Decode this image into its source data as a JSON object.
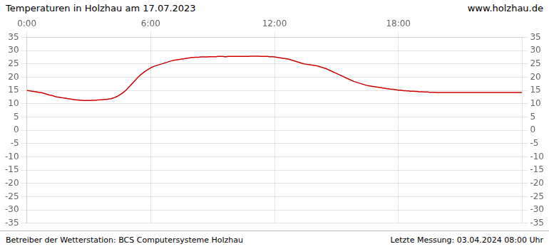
{
  "chart_data": {
    "type": "line",
    "title": "Temperaturen in Holzhau am 17.07.2023",
    "annotations": [
      "www.holzhau.de",
      "Betreiber der Wetterstation: BCS Computersysteme Holzhau",
      "Letzte Messung: 03.04.2024 08:00 Uhr"
    ],
    "x": [
      0,
      1,
      2,
      3,
      4,
      5,
      6,
      7,
      8,
      9,
      10,
      11,
      12,
      13,
      14,
      15,
      16,
      17,
      18,
      19,
      20,
      21,
      22,
      23,
      24,
      25,
      26,
      27,
      28,
      29,
      30,
      31,
      32,
      33,
      34,
      35,
      36,
      37,
      38,
      39,
      40,
      41,
      42,
      43,
      44,
      45,
      46,
      47,
      48,
      49,
      50,
      51,
      52,
      53,
      54,
      55,
      56,
      57,
      58,
      59,
      60,
      61,
      62,
      63,
      64,
      65,
      66,
      67,
      68,
      69,
      70,
      71,
      72,
      73,
      74,
      75,
      76,
      77,
      78,
      79,
      80,
      81,
      82,
      83,
      84,
      85,
      86,
      87,
      88,
      89,
      90,
      91,
      92,
      93,
      94,
      95,
      96,
      97,
      98,
      99,
      100,
      101,
      102,
      103,
      104,
      105,
      106,
      107,
      108,
      109,
      110,
      111,
      112,
      113,
      114,
      115,
      116,
      117,
      118,
      119,
      120,
      121,
      122,
      123,
      124,
      125,
      126,
      127,
      128,
      129,
      130,
      131,
      132,
      133,
      134,
      135,
      136,
      137,
      138,
      139,
      140,
      141,
      142,
      143,
      144,
      145,
      146,
      147,
      148,
      149,
      150,
      151,
      152,
      153,
      154,
      155,
      156,
      157,
      158,
      159,
      160,
      161,
      162,
      163,
      164,
      165,
      166,
      167,
      168,
      169,
      170,
      171,
      172,
      173,
      174,
      175,
      176,
      177,
      178,
      179,
      180,
      181,
      182,
      183,
      184,
      185,
      186,
      187,
      188,
      189,
      190,
      191,
      192,
      193,
      194,
      195,
      196,
      197,
      198,
      199,
      200,
      201,
      202,
      203,
      204,
      205,
      206,
      207,
      208,
      209,
      210,
      211,
      212,
      213,
      214,
      215,
      216,
      217,
      218,
      219,
      220,
      221,
      222,
      223,
      224,
      225,
      226,
      227,
      228,
      229,
      230,
      231,
      232,
      233,
      234,
      235,
      236,
      237,
      238,
      239,
      240,
      241,
      242,
      243,
      244,
      245,
      246,
      247,
      248,
      249,
      250,
      251,
      252,
      253,
      254,
      255,
      256,
      257,
      258,
      259,
      260,
      261,
      262,
      263,
      264,
      265,
      266,
      267,
      268,
      269,
      270,
      271,
      272,
      273,
      274,
      275,
      276,
      277,
      278,
      279,
      280,
      281,
      282,
      283,
      284,
      285,
      286,
      287,
      288
    ],
    "values": [
      15.0,
      14.9,
      14.8,
      14.7,
      14.6,
      14.5,
      14.4,
      14.3,
      14.2,
      14.1,
      13.9,
      13.7,
      13.5,
      13.3,
      13.2,
      13.0,
      12.8,
      12.6,
      12.5,
      12.4,
      12.3,
      12.2,
      12.1,
      12.0,
      11.9,
      11.8,
      11.7,
      11.6,
      11.5,
      11.4,
      11.4,
      11.3,
      11.3,
      11.2,
      11.2,
      11.2,
      11.2,
      11.2,
      11.3,
      11.3,
      11.3,
      11.4,
      11.4,
      11.5,
      11.5,
      11.6,
      11.6,
      11.7,
      11.8,
      11.9,
      12.1,
      12.3,
      12.6,
      12.9,
      13.3,
      13.7,
      14.2,
      14.7,
      15.3,
      16.0,
      16.7,
      17.4,
      18.1,
      18.8,
      19.5,
      20.2,
      20.8,
      21.3,
      21.8,
      22.3,
      22.7,
      23.1,
      23.5,
      23.8,
      24.1,
      24.3,
      24.5,
      24.7,
      24.9,
      25.1,
      25.3,
      25.5,
      25.7,
      25.9,
      26.1,
      26.3,
      26.4,
      26.5,
      26.6,
      26.7,
      26.8,
      26.9,
      27.0,
      27.1,
      27.2,
      27.3,
      27.4,
      27.4,
      27.5,
      27.5,
      27.5,
      27.6,
      27.6,
      27.6,
      27.6,
      27.6,
      27.7,
      27.7,
      27.7,
      27.7,
      27.7,
      27.8,
      27.8,
      27.8,
      27.8,
      27.7,
      27.7,
      27.8,
      27.8,
      27.8,
      27.8,
      27.8,
      27.8,
      27.8,
      27.8,
      27.8,
      27.8,
      27.8,
      27.8,
      27.8,
      27.9,
      27.9,
      27.9,
      27.9,
      27.9,
      27.9,
      27.8,
      27.8,
      27.8,
      27.8,
      27.8,
      27.7,
      27.7,
      27.7,
      27.6,
      27.5,
      27.4,
      27.3,
      27.2,
      27.1,
      27.0,
      26.9,
      26.8,
      26.6,
      26.4,
      26.2,
      26.0,
      25.8,
      25.6,
      25.4,
      25.2,
      25.0,
      24.9,
      24.8,
      24.7,
      24.6,
      24.5,
      24.4,
      24.3,
      24.2,
      24.0,
      23.8,
      23.6,
      23.4,
      23.2,
      22.9,
      22.6,
      22.3,
      22.0,
      21.7,
      21.4,
      21.1,
      20.8,
      20.5,
      20.2,
      19.9,
      19.6,
      19.3,
      19.0,
      18.7,
      18.4,
      18.2,
      18.0,
      17.8,
      17.6,
      17.4,
      17.2,
      17.0,
      16.8,
      16.7,
      16.6,
      16.5,
      16.4,
      16.3,
      16.2,
      16.1,
      16.0,
      15.9,
      15.8,
      15.7,
      15.6,
      15.5,
      15.4,
      15.4,
      15.3,
      15.2,
      15.1,
      15.1,
      15.0,
      14.9,
      14.9,
      14.8,
      14.8,
      14.7,
      14.7,
      14.7,
      14.6,
      14.6,
      14.5,
      14.5,
      14.5,
      14.4,
      14.4,
      14.4,
      14.3,
      14.3,
      14.3,
      14.3,
      14.2,
      14.2,
      14.2,
      14.2,
      14.2,
      14.2,
      14.2,
      14.2,
      14.2,
      14.2,
      14.2,
      14.2,
      14.2,
      14.2,
      14.2,
      14.2,
      14.2,
      14.2,
      14.2,
      14.2,
      14.2,
      14.2,
      14.2,
      14.2,
      14.2,
      14.2,
      14.2,
      14.2,
      14.2,
      14.2,
      14.2,
      14.2,
      14.2,
      14.2,
      14.2,
      14.2,
      14.2,
      14.2,
      14.2,
      14.2,
      14.2,
      14.2,
      14.2,
      14.2,
      14.2,
      14.2,
      14.2,
      14.2,
      14.2,
      14.2,
      14.2
    ],
    "color": "#cc0000",
    "xlim": [
      0,
      288
    ],
    "xticks": [
      {
        "value": 0,
        "label": "0:00"
      },
      {
        "value": 72,
        "label": "6:00"
      },
      {
        "value": 144,
        "label": "12:00"
      },
      {
        "value": 216,
        "label": "18:00"
      }
    ],
    "ylim": [
      -35,
      35
    ],
    "yticks": [
      -35,
      -30,
      -25,
      -20,
      -15,
      -10,
      -5,
      0,
      5,
      10,
      15,
      20,
      25,
      30,
      35
    ],
    "y2lim": [
      -35,
      35
    ],
    "y2ticks": [
      -35,
      -30,
      -25,
      -20,
      -15,
      -10,
      -5,
      0,
      5,
      10,
      15,
      20,
      25,
      30,
      35
    ],
    "grid": true
  }
}
